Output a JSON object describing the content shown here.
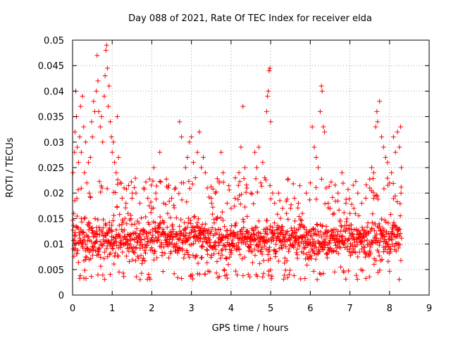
{
  "chart_data": {
    "type": "scatter",
    "title": "Day 088 of 2021, Rate Of TEC Index for receiver elda",
    "xlabel": "GPS time / hours",
    "ylabel": "ROTI / TECUs",
    "xlim": [
      0,
      9
    ],
    "ylim": [
      0,
      0.05
    ],
    "x_ticks": [
      "0",
      "1",
      "2",
      "3",
      "4",
      "5",
      "6",
      "7",
      "8",
      "9"
    ],
    "y_ticks": [
      "0",
      "0.005",
      "0.01",
      "0.015",
      "0.02",
      "0.025",
      "0.03",
      "0.035",
      "0.04",
      "0.045",
      "0.05"
    ],
    "grid": true,
    "legend": "none",
    "marker": "plus",
    "color": "#ff0000",
    "series": [
      {
        "values": [
          [
            0.01,
            0.024
          ],
          [
            0.03,
            0.016
          ],
          [
            0.05,
            0.028
          ],
          [
            0.06,
            0.032
          ],
          [
            0.08,
            0.04
          ],
          [
            0.1,
            0.035
          ],
          [
            0.12,
            0.029
          ],
          [
            0.15,
            0.026
          ],
          [
            0.18,
            0.031
          ],
          [
            0.2,
            0.037
          ],
          [
            0.22,
            0.028
          ],
          [
            0.25,
            0.039
          ],
          [
            0.28,
            0.033
          ],
          [
            0.3,
            0.024
          ],
          [
            0.33,
            0.03
          ],
          [
            0.36,
            0.022
          ],
          [
            0.4,
            0.026
          ],
          [
            0.42,
            0.02
          ],
          [
            0.45,
            0.027
          ],
          [
            0.48,
            0.034
          ],
          [
            0.5,
            0.031
          ],
          [
            0.53,
            0.038
          ],
          [
            0.56,
            0.036
          ],
          [
            0.6,
            0.04
          ],
          [
            0.62,
            0.047
          ],
          [
            0.64,
            0.042
          ],
          [
            0.66,
            0.036
          ],
          [
            0.7,
            0.033
          ],
          [
            0.73,
            0.035
          ],
          [
            0.76,
            0.03
          ],
          [
            0.8,
            0.039
          ],
          [
            0.82,
            0.043
          ],
          [
            0.84,
            0.048
          ],
          [
            0.86,
            0.049
          ],
          [
            0.88,
            0.0445
          ],
          [
            0.9,
            0.037
          ],
          [
            0.92,
            0.041
          ],
          [
            0.95,
            0.034
          ],
          [
            0.98,
            0.031
          ],
          [
            1.0,
            0.028
          ],
          [
            1.03,
            0.03
          ],
          [
            1.06,
            0.026
          ],
          [
            1.1,
            0.024
          ],
          [
            1.13,
            0.035
          ],
          [
            1.16,
            0.027
          ],
          [
            1.2,
            0.022
          ],
          [
            1.25,
            0.019
          ],
          [
            1.3,
            0.021
          ],
          [
            1.35,
            0.018
          ],
          [
            1.4,
            0.016
          ],
          [
            1.5,
            0.019
          ],
          [
            1.6,
            0.02
          ],
          [
            1.7,
            0.018
          ],
          [
            1.8,
            0.021
          ],
          [
            1.9,
            0.019
          ],
          [
            2.0,
            0.017
          ],
          [
            2.05,
            0.025
          ],
          [
            2.1,
            0.02
          ],
          [
            2.2,
            0.028
          ],
          [
            2.3,
            0.018
          ],
          [
            2.4,
            0.016
          ],
          [
            2.5,
            0.019
          ],
          [
            2.6,
            0.021
          ],
          [
            2.7,
            0.034
          ],
          [
            2.75,
            0.031
          ],
          [
            2.8,
            0.022
          ],
          [
            2.85,
            0.025
          ],
          [
            2.9,
            0.027
          ],
          [
            2.95,
            0.03
          ],
          [
            3.0,
            0.031
          ],
          [
            3.05,
            0.026
          ],
          [
            3.1,
            0.023
          ],
          [
            3.15,
            0.028
          ],
          [
            3.2,
            0.032
          ],
          [
            3.25,
            0.025
          ],
          [
            3.3,
            0.027
          ],
          [
            3.35,
            0.024
          ],
          [
            3.4,
            0.021
          ],
          [
            3.5,
            0.019
          ],
          [
            3.6,
            0.02
          ],
          [
            3.7,
            0.022
          ],
          [
            3.75,
            0.028
          ],
          [
            3.8,
            0.024
          ],
          [
            3.9,
            0.018
          ],
          [
            4.0,
            0.017
          ],
          [
            4.1,
            0.019
          ],
          [
            4.2,
            0.024
          ],
          [
            4.25,
            0.029
          ],
          [
            4.3,
            0.037
          ],
          [
            4.35,
            0.025
          ],
          [
            4.4,
            0.021
          ],
          [
            4.5,
            0.02
          ],
          [
            4.6,
            0.028
          ],
          [
            4.65,
            0.025
          ],
          [
            4.7,
            0.029
          ],
          [
            4.75,
            0.022
          ],
          [
            4.8,
            0.026
          ],
          [
            4.85,
            0.023
          ],
          [
            4.9,
            0.036
          ],
          [
            4.92,
            0.039
          ],
          [
            4.94,
            0.04
          ],
          [
            4.96,
            0.044
          ],
          [
            4.98,
            0.0445
          ],
          [
            5.0,
            0.034
          ],
          [
            5.05,
            0.02
          ],
          [
            5.1,
            0.018
          ],
          [
            5.2,
            0.02
          ],
          [
            5.3,
            0.017
          ],
          [
            5.4,
            0.016
          ],
          [
            5.5,
            0.017
          ],
          [
            5.6,
            0.019
          ],
          [
            5.7,
            0.018
          ],
          [
            5.8,
            0.016
          ],
          [
            5.9,
            0.02
          ],
          [
            6.0,
            0.022
          ],
          [
            6.05,
            0.033
          ],
          [
            6.1,
            0.029
          ],
          [
            6.15,
            0.027
          ],
          [
            6.2,
            0.025
          ],
          [
            6.25,
            0.036
          ],
          [
            6.28,
            0.041
          ],
          [
            6.3,
            0.04
          ],
          [
            6.33,
            0.033
          ],
          [
            6.36,
            0.032
          ],
          [
            6.4,
            0.021
          ],
          [
            6.45,
            0.018
          ],
          [
            6.5,
            0.017
          ],
          [
            6.6,
            0.016
          ],
          [
            6.7,
            0.02
          ],
          [
            6.8,
            0.024
          ],
          [
            6.9,
            0.018
          ],
          [
            7.0,
            0.016
          ],
          [
            7.1,
            0.017
          ],
          [
            7.2,
            0.02
          ],
          [
            7.3,
            0.018
          ],
          [
            7.4,
            0.019
          ],
          [
            7.5,
            0.021
          ],
          [
            7.55,
            0.025
          ],
          [
            7.6,
            0.024
          ],
          [
            7.65,
            0.033
          ],
          [
            7.68,
            0.036
          ],
          [
            7.7,
            0.034
          ],
          [
            7.75,
            0.038
          ],
          [
            7.8,
            0.031
          ],
          [
            7.85,
            0.029
          ],
          [
            7.9,
            0.027
          ],
          [
            7.95,
            0.026
          ],
          [
            8.0,
            0.022
          ],
          [
            8.05,
            0.024
          ],
          [
            8.1,
            0.031
          ],
          [
            8.15,
            0.028
          ],
          [
            8.2,
            0.032
          ],
          [
            8.25,
            0.029
          ],
          [
            8.28,
            0.033
          ],
          [
            8.3,
            0.025
          ]
        ],
        "band": {
          "x_range": [
            0.0,
            8.3
          ],
          "typical_range": [
            0.005,
            0.017
          ],
          "median": 0.0105,
          "floor": 0.003,
          "points_per_hour": 180
        }
      }
    ]
  }
}
